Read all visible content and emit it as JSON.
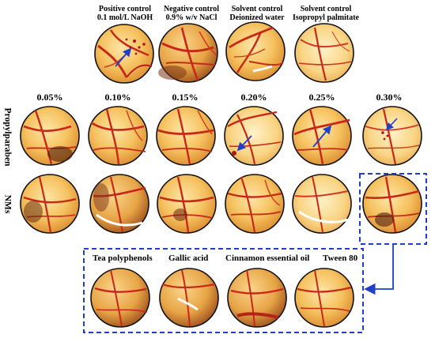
{
  "controls": [
    {
      "title": "Positive control",
      "detail": "0.1 mol/L NaOH"
    },
    {
      "title": "Negative control",
      "detail": "0.9% w/v NaCl"
    },
    {
      "title": "Solvent control",
      "detail": "Deionized water"
    },
    {
      "title": "Solvent control",
      "detail": "Isopropyl palmitate"
    }
  ],
  "concentrations": [
    "0.05%",
    "0.10%",
    "0.15%",
    "0.20%",
    "0.25%",
    "0.30%"
  ],
  "row_labels": {
    "row1": "Propylparaben",
    "row2": "NMs"
  },
  "ingredients": [
    "Tea polyphenols",
    "Gallic acid",
    "Cinnamon essential oil",
    "Tween 80"
  ],
  "colors": {
    "highlight_box": "#1f3fc8",
    "arrow": "#1f3fc8",
    "vessel": "#c8281a",
    "membrane": "#f6c260"
  }
}
